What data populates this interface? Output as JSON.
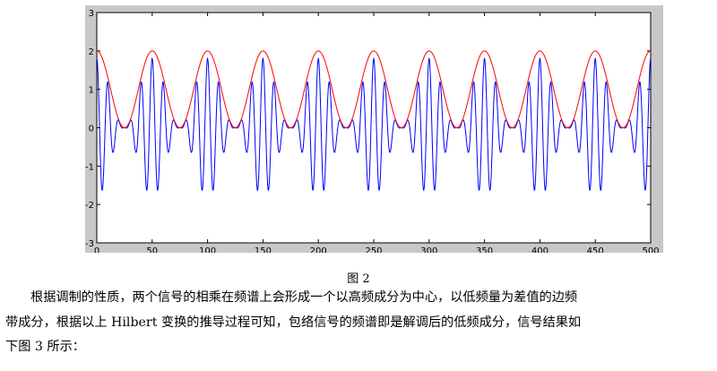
{
  "chart_data": {
    "type": "line",
    "title": "",
    "xlabel": "",
    "ylabel": "",
    "xlim": [
      0,
      500
    ],
    "ylim": [
      -3,
      3
    ],
    "xticks": [
      0,
      50,
      100,
      150,
      200,
      250,
      300,
      350,
      400,
      450,
      500
    ],
    "yticks": [
      3,
      2,
      1,
      0,
      -1,
      -2,
      -3
    ],
    "grid": false,
    "series": [
      {
        "color": "#0000ff",
        "formula": "(1 + cos(2*pi*x/50)) * cos(2*pi*x/10)",
        "envelope_max": 2,
        "low_frequency_period": 50,
        "carrier_period": 10,
        "min": -1.8
      },
      {
        "color": "#ff0000",
        "formula": "1 + cos(2*pi*x/50)",
        "max": 2,
        "min": 0,
        "period": 50
      }
    ]
  },
  "caption": "图 2",
  "body": {
    "lines": [
      "根据调制的性质，两个信号的相乘在频谱上会形成一个以高频成分为中心，以低频量为差值的边频",
      "带成分，根据以上 Hilbert 变换的推导过程可知，包络信号的频谱即是解调后的低频成分，信号结果如",
      "下图 3 所示："
    ]
  }
}
